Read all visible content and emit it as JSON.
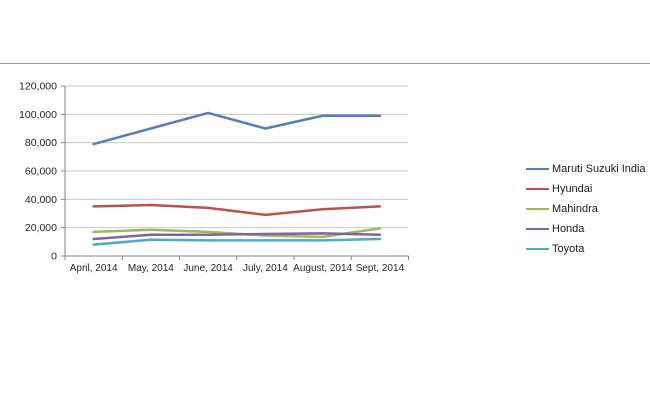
{
  "page": {
    "divider": "horizontal rule above chart"
  },
  "chart_data": {
    "type": "line",
    "title": "",
    "categories": [
      "April, 2014",
      "May, 2014",
      "June, 2014",
      "July, 2014",
      "August, 2014",
      "Sept, 2014"
    ],
    "series": [
      {
        "name": "Maruti Suzuki India",
        "color": "#4F81BD",
        "values": [
          79000,
          90000,
          101000,
          90000,
          99000,
          99000
        ]
      },
      {
        "name": "Hyundai",
        "color": "#C0504D",
        "values": [
          35000,
          36000,
          34000,
          29000,
          33000,
          35000
        ]
      },
      {
        "name": "Mahindra",
        "color": "#9BBB59",
        "values": [
          17000,
          18500,
          17000,
          14500,
          13500,
          19500
        ]
      },
      {
        "name": "Honda",
        "color": "#8064A2",
        "values": [
          12000,
          15000,
          15000,
          15500,
          16000,
          15000
        ]
      },
      {
        "name": "Toyota",
        "color": "#4BACC6",
        "values": [
          8000,
          11500,
          11000,
          11000,
          11000,
          12000
        ]
      }
    ],
    "y_axis": {
      "min": 0,
      "max": 120000,
      "step": 20000,
      "tick_labels": [
        "0",
        "20,000",
        "40,000",
        "60,000",
        "80,000",
        "100,000",
        "120,000"
      ]
    },
    "grid": true,
    "legend_position": "right",
    "gridline_color": "#C9C9C9",
    "axis_color": "#868686",
    "text_color": "#262626"
  }
}
